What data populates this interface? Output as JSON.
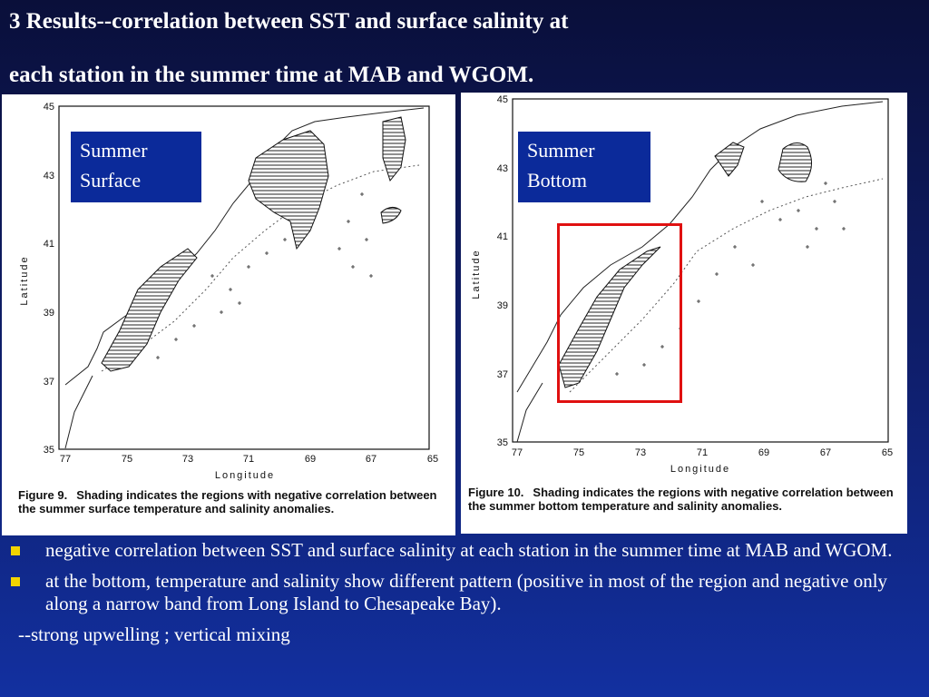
{
  "slide": {
    "title_line1": "3 Results--correlation between SST and surface salinity at",
    "title_line2": "each station in the summer time at MAB and WGOM."
  },
  "figure_left": {
    "label_line1": "Summer",
    "label_line2": "Surface",
    "y_ticks": [
      "45",
      "43",
      "41",
      "39",
      "37",
      "35"
    ],
    "x_ticks": [
      "77",
      "75",
      "73",
      "71",
      "69",
      "67",
      "65"
    ],
    "xlabel": "Longitude",
    "ylabel": "Latitude",
    "caption_fig": "Figure 9.",
    "caption_text": "Shading indicates the regions with negative correlation between the summer surface temperature and salinity anomalies."
  },
  "figure_right": {
    "label_line1": "Summer",
    "label_line2": "Bottom",
    "y_ticks": [
      "45",
      "43",
      "41",
      "39",
      "37",
      "35"
    ],
    "x_ticks": [
      "77",
      "75",
      "73",
      "71",
      "69",
      "67",
      "65"
    ],
    "xlabel": "Longitude",
    "ylabel": "Latitude",
    "caption_fig": "Figure 10.",
    "caption_text": "Shading indicates the regions with negative correlation between the summer bottom temperature and salinity anomalies."
  },
  "bullets": [
    "negative correlation between SST and surface salinity at each station in the summer time at MAB and WGOM.",
    "at the bottom, temperature and salinity show different pattern (positive in most of the region and negative only along a narrow band from Long Island to Chesapeake Bay)."
  ],
  "note": "--strong upwelling ; vertical mixing",
  "colors": {
    "bullet": "#f2d400",
    "highlight": "#e01010",
    "label_bg": "#0b2a9a"
  }
}
